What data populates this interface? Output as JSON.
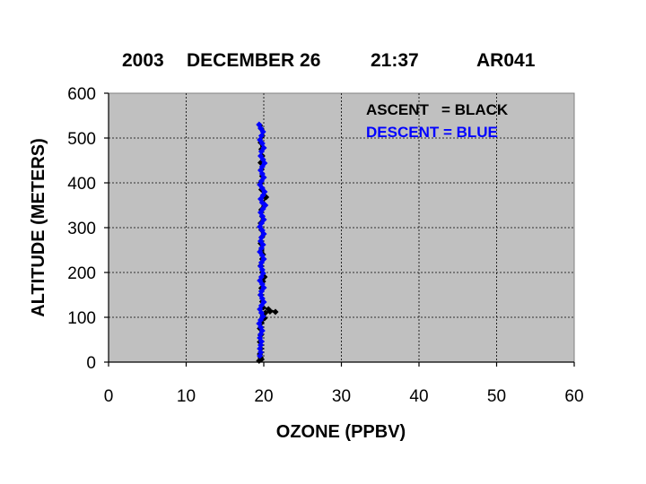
{
  "chart_data": {
    "type": "scatter",
    "title": {
      "year": "2003",
      "date": "DECEMBER 26",
      "time": "21:37",
      "id": "AR041"
    },
    "xlabel": "OZONE (PPBV)",
    "ylabel": "ALTITUDE (METERS)",
    "xlim": [
      0,
      60
    ],
    "ylim": [
      0,
      600
    ],
    "xticks": [
      "0",
      "10",
      "20",
      "30",
      "40",
      "50",
      "60"
    ],
    "yticks": [
      "0",
      "100",
      "200",
      "300",
      "400",
      "500",
      "600"
    ],
    "grid": true,
    "legend_position": "top-right",
    "legend": [
      {
        "label": "ASCENT   = BLACK",
        "color": "#000000"
      },
      {
        "label": "DESCENT = BLUE",
        "color": "#0000ff"
      }
    ],
    "colors": {
      "plot_background": "#c0c0c0",
      "grid": "#000000"
    },
    "series": [
      {
        "color": "#000000",
        "points": [
          [
            19.4,
            3
          ],
          [
            19.7,
            6
          ],
          [
            19.6,
            10
          ],
          [
            19.5,
            18
          ],
          [
            19.6,
            30
          ],
          [
            19.5,
            45
          ],
          [
            19.6,
            60
          ],
          [
            19.5,
            75
          ],
          [
            19.7,
            88
          ],
          [
            19.8,
            95
          ],
          [
            20.1,
            98
          ],
          [
            19.9,
            104
          ],
          [
            20.2,
            110
          ],
          [
            20.8,
            113
          ],
          [
            21.5,
            112
          ],
          [
            20.6,
            118
          ],
          [
            19.9,
            122
          ],
          [
            19.8,
            135
          ],
          [
            19.6,
            150
          ],
          [
            19.7,
            165
          ],
          [
            19.9,
            180
          ],
          [
            20.1,
            190
          ],
          [
            19.8,
            200
          ],
          [
            19.6,
            215
          ],
          [
            19.8,
            230
          ],
          [
            19.9,
            240
          ],
          [
            19.7,
            250
          ],
          [
            19.6,
            265
          ],
          [
            19.8,
            280
          ],
          [
            19.7,
            295
          ],
          [
            19.6,
            310
          ],
          [
            19.8,
            325
          ],
          [
            19.7,
            340
          ],
          [
            19.9,
            355
          ],
          [
            20.3,
            368
          ],
          [
            20.0,
            372
          ],
          [
            19.7,
            385
          ],
          [
            19.6,
            400
          ],
          [
            19.8,
            415
          ],
          [
            19.7,
            430
          ],
          [
            19.6,
            445
          ],
          [
            19.8,
            460
          ],
          [
            19.7,
            475
          ],
          [
            19.6,
            490
          ],
          [
            19.8,
            505
          ],
          [
            19.7,
            520
          ],
          [
            19.5,
            528
          ]
        ]
      },
      {
        "color": "#0000ff",
        "points": [
          [
            19.4,
            530
          ],
          [
            19.6,
            522
          ],
          [
            19.9,
            514
          ],
          [
            19.7,
            505
          ],
          [
            19.5,
            496
          ],
          [
            19.8,
            488
          ],
          [
            20.0,
            478
          ],
          [
            19.7,
            470
          ],
          [
            19.6,
            460
          ],
          [
            19.9,
            452
          ],
          [
            20.1,
            444
          ],
          [
            19.8,
            436
          ],
          [
            19.6,
            428
          ],
          [
            19.8,
            420
          ],
          [
            20.0,
            412
          ],
          [
            19.7,
            404
          ],
          [
            19.5,
            396
          ],
          [
            19.8,
            388
          ],
          [
            20.1,
            380
          ],
          [
            19.9,
            372
          ],
          [
            19.6,
            364
          ],
          [
            19.8,
            356
          ],
          [
            20.2,
            350
          ],
          [
            19.9,
            342
          ],
          [
            19.6,
            334
          ],
          [
            19.8,
            326
          ],
          [
            20.0,
            318
          ],
          [
            19.7,
            310
          ],
          [
            19.5,
            302
          ],
          [
            19.8,
            294
          ],
          [
            20.0,
            286
          ],
          [
            19.7,
            278
          ],
          [
            19.6,
            270
          ],
          [
            19.9,
            262
          ],
          [
            19.7,
            254
          ],
          [
            19.5,
            246
          ],
          [
            19.8,
            238
          ],
          [
            20.0,
            230
          ],
          [
            19.7,
            222
          ],
          [
            19.6,
            214
          ],
          [
            19.8,
            206
          ],
          [
            19.9,
            198
          ],
          [
            19.7,
            190
          ],
          [
            19.5,
            182
          ],
          [
            19.8,
            174
          ],
          [
            20.0,
            166
          ],
          [
            19.7,
            158
          ],
          [
            19.6,
            150
          ],
          [
            19.8,
            142
          ],
          [
            20.0,
            134
          ],
          [
            19.7,
            126
          ],
          [
            19.5,
            118
          ],
          [
            19.7,
            110
          ],
          [
            19.9,
            102
          ],
          [
            19.6,
            94
          ],
          [
            19.4,
            86
          ],
          [
            19.6,
            78
          ],
          [
            19.8,
            70
          ],
          [
            19.6,
            62
          ],
          [
            19.5,
            54
          ],
          [
            19.7,
            46
          ],
          [
            19.6,
            38
          ],
          [
            19.5,
            30
          ],
          [
            19.6,
            22
          ],
          [
            19.5,
            14
          ]
        ]
      }
    ]
  }
}
